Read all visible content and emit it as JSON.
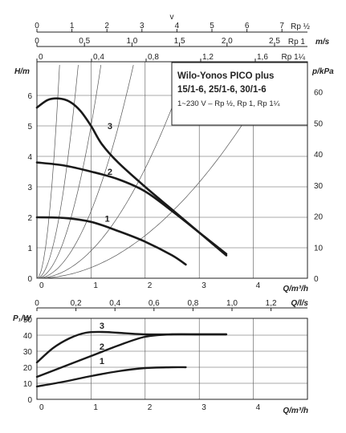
{
  "top_scales": [
    {
      "unit": "v",
      "ticks": [
        "0",
        "1",
        "2",
        "3",
        "4",
        "5",
        "6",
        "7"
      ],
      "suffix": "Rp ½"
    },
    {
      "unit": "m/s",
      "ticks": [
        "0",
        "0,5",
        "1,0",
        "1,5",
        "2,0",
        "2,5"
      ],
      "suffix": "Rp 1"
    },
    {
      "unit": "",
      "ticks": [
        "0",
        "0,4",
        "0,8",
        "1,2",
        "1,6"
      ],
      "suffix": "Rp 1¼"
    }
  ],
  "title_box": {
    "line1": "Wilo-Yonos PICO plus",
    "line2": "15/1-6, 25/1-6, 30/1-6",
    "line3": "1~230 V – Rp ½, Rp 1, Rp 1¼"
  },
  "chart_data": [
    {
      "type": "line",
      "xlabel": "Q/m³/h",
      "ylabel": "H/m",
      "y2label": "p/kPa",
      "xlim": [
        0,
        5
      ],
      "ylim": [
        0,
        7
      ],
      "x_ticks": [
        "0",
        "1",
        "2",
        "3",
        "4"
      ],
      "y_ticks": [
        "0",
        "1",
        "2",
        "3",
        "4",
        "5",
        "6"
      ],
      "y2_ticks": [
        "0",
        "10",
        "20",
        "30",
        "40",
        "50",
        "60"
      ],
      "x2label": "Q/l/s",
      "x2_ticks": [
        "0",
        "0,2",
        "0,4",
        "0,6",
        "0,8",
        "1,0",
        "1,2"
      ],
      "series": [
        {
          "name": "1",
          "x": [
            0,
            0.5,
            1.0,
            1.5,
            2.0,
            2.5,
            2.75
          ],
          "y": [
            2.0,
            1.98,
            1.85,
            1.55,
            1.2,
            0.75,
            0.45
          ]
        },
        {
          "name": "2",
          "x": [
            0,
            0.5,
            1.0,
            1.5,
            2.0,
            2.5,
            3.0,
            3.5
          ],
          "y": [
            3.8,
            3.7,
            3.5,
            3.25,
            2.85,
            2.2,
            1.5,
            0.8
          ]
        },
        {
          "name": "3",
          "x": [
            0,
            0.2,
            0.4,
            0.6,
            0.8,
            1.0,
            1.2,
            1.5,
            2.0,
            2.5,
            3.0,
            3.5
          ],
          "y": [
            5.6,
            5.85,
            5.9,
            5.8,
            5.5,
            5.0,
            4.4,
            3.8,
            3.0,
            2.25,
            1.5,
            0.75
          ]
        }
      ]
    },
    {
      "type": "line",
      "xlabel": "Q/m³/h",
      "ylabel": "P₁/W",
      "xlim": [
        0,
        5
      ],
      "ylim": [
        0,
        50
      ],
      "x_ticks": [
        "0",
        "1",
        "2",
        "3",
        "4"
      ],
      "y_ticks": [
        "0",
        "10",
        "20",
        "30",
        "40",
        "50"
      ],
      "series": [
        {
          "name": "1",
          "x": [
            0,
            0.5,
            1.0,
            1.5,
            2.0,
            2.5,
            2.75
          ],
          "y": [
            8,
            11,
            14.5,
            17.5,
            19.5,
            20,
            20
          ]
        },
        {
          "name": "2",
          "x": [
            0,
            0.5,
            1.0,
            1.5,
            2.0,
            2.5,
            3.0,
            3.5
          ],
          "y": [
            14,
            20.5,
            27,
            33.5,
            39,
            40.5,
            40.5,
            40.5
          ]
        },
        {
          "name": "3",
          "x": [
            0,
            0.3,
            0.6,
            0.9,
            1.2,
            1.5,
            2.0,
            2.5,
            3.0,
            3.5
          ],
          "y": [
            23,
            32,
            38,
            41.5,
            42,
            41.5,
            40.5,
            40.5,
            40.5,
            40.5
          ]
        }
      ]
    }
  ]
}
